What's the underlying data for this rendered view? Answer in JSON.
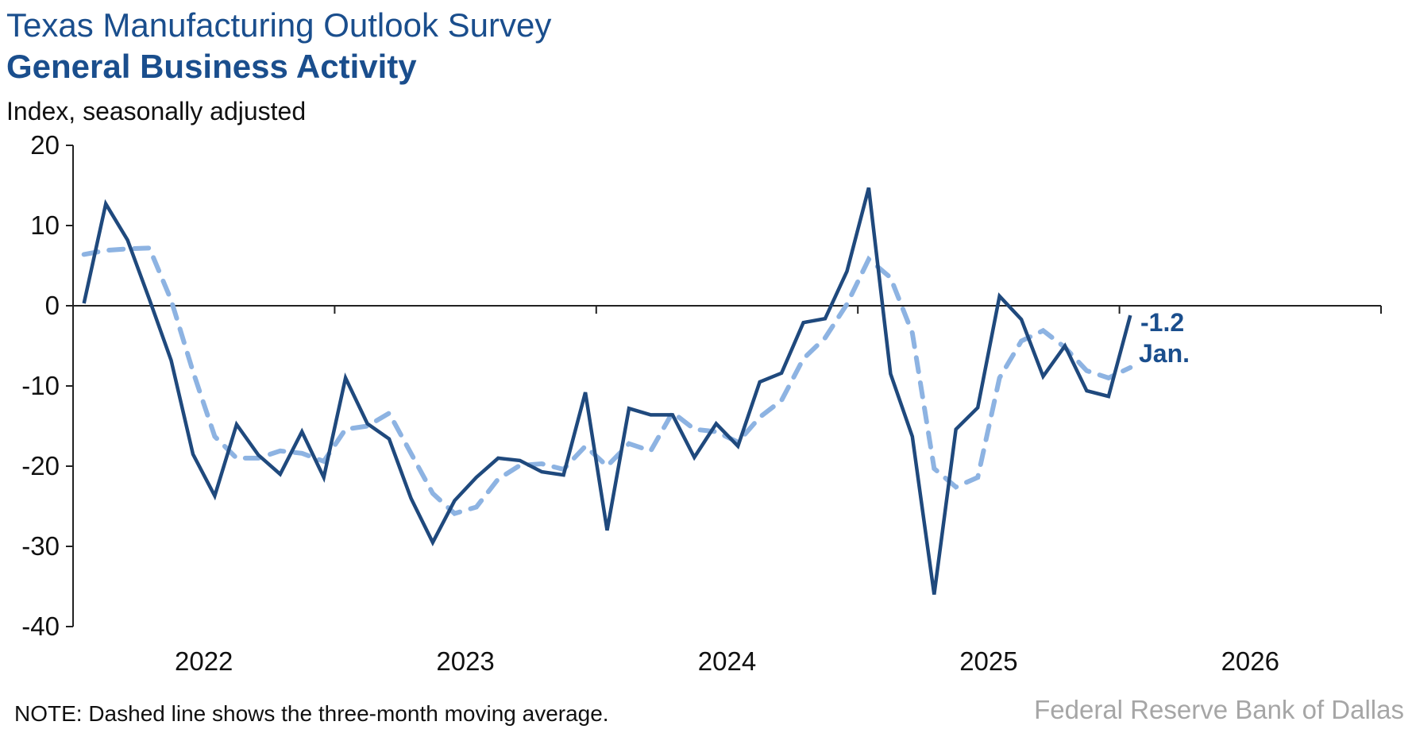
{
  "header": {
    "title": "Texas Manufacturing Outlook Survey",
    "subtitle": "General Business Activity",
    "units": "Index, seasonally adjusted"
  },
  "footer": {
    "note": "NOTE: Dashed line shows the three-month moving average.",
    "source": "Federal Reserve Bank of Dallas"
  },
  "chart_data": {
    "type": "line",
    "title": "General Business Activity",
    "ylabel": "Index, seasonally adjusted",
    "xlabel": "",
    "ylim": [
      -40,
      20
    ],
    "yticks": [
      20,
      10,
      0,
      -10,
      -20,
      -30,
      -40
    ],
    "xlim": [
      "2022-01",
      "2026-12"
    ],
    "xtick_labels": [
      "2022",
      "2023",
      "2024",
      "2025",
      "2026"
    ],
    "grid": false,
    "x_start": "2022-01",
    "frequency": "monthly",
    "series": [
      {
        "style": "solid",
        "color": "#1f497d",
        "values": [
          0.3,
          12.7,
          8.2,
          0.8,
          -6.8,
          -18.5,
          -23.7,
          -14.8,
          -18.6,
          -21.0,
          -15.7,
          -21.4,
          -9.0,
          -14.7,
          -16.6,
          -24.0,
          -29.5,
          -24.3,
          -21.4,
          -19.0,
          -19.3,
          -20.7,
          -21.1,
          -10.8,
          -28.0,
          -12.8,
          -13.6,
          -13.6,
          -18.9,
          -14.7,
          -17.5,
          -9.5,
          -8.4,
          -2.1,
          -1.6,
          4.3,
          14.7,
          -8.5,
          -16.3,
          -36.0,
          -15.4,
          -12.7,
          1.2,
          -1.7,
          -8.8,
          -5.0,
          -10.6,
          -11.3,
          -1.2
        ]
      },
      {
        "style": "dashed",
        "color": "#8db3e2",
        "values": [
          6.4,
          6.9,
          7.1,
          7.2,
          0.7,
          -8.2,
          -16.3,
          -19.0,
          -19.0,
          -18.1,
          -18.4,
          -19.4,
          -15.4,
          -15.0,
          -13.4,
          -18.4,
          -23.4,
          -25.9,
          -25.1,
          -21.6,
          -19.9,
          -19.7,
          -20.4,
          -17.5,
          -20.0,
          -17.2,
          -18.1,
          -13.3,
          -15.4,
          -15.7,
          -17.0,
          -13.9,
          -11.8,
          -6.6,
          -4.0,
          0.2,
          5.8,
          3.5,
          -3.4,
          -20.3,
          -22.6,
          -21.4,
          -9.0,
          -4.4,
          -3.1,
          -5.2,
          -8.1,
          -9.0,
          -7.7
        ]
      }
    ],
    "annotation": {
      "value": "-1.2",
      "label": "Jan."
    }
  }
}
